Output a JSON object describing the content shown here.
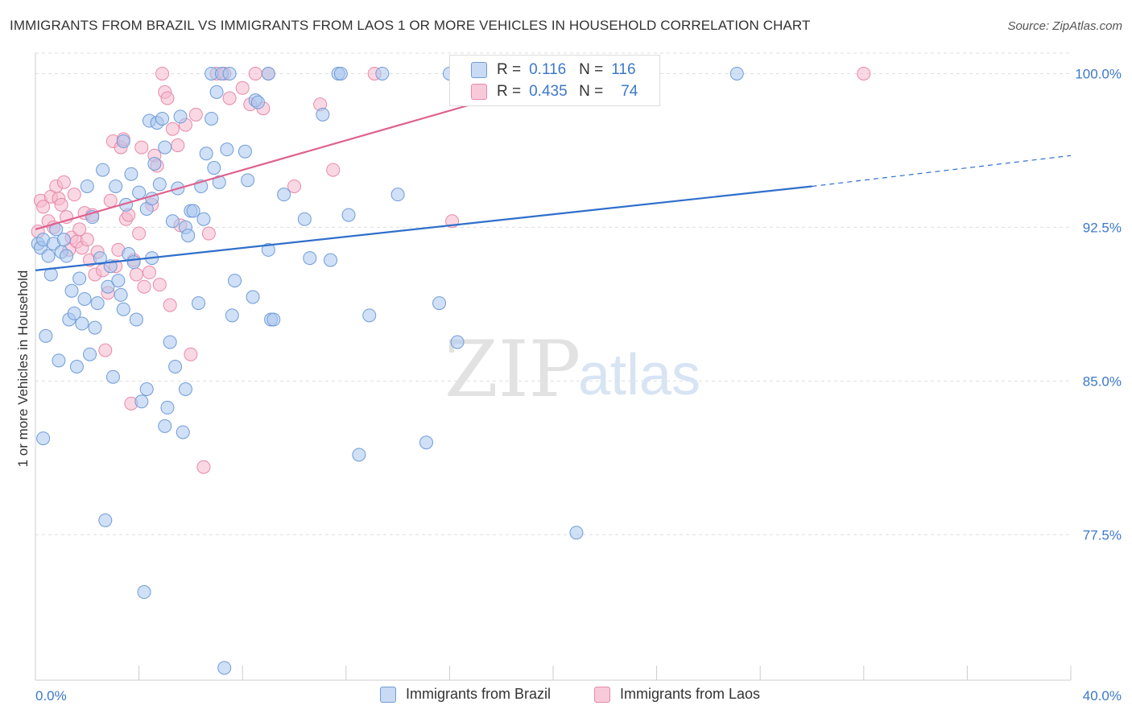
{
  "title": "IMMIGRANTS FROM BRAZIL VS IMMIGRANTS FROM LAOS 1 OR MORE VEHICLES IN HOUSEHOLD CORRELATION CHART",
  "source": "Source: ZipAtlas.com",
  "watermark": {
    "zip": "ZIP",
    "atlas": "atlas"
  },
  "legend": {
    "r_label": "R =",
    "n_label": "N =",
    "brazil": {
      "r": "0.116",
      "n": "116"
    },
    "laos": {
      "r": "0.435",
      "n": "74"
    }
  },
  "colors": {
    "brazil_fill": "#a9c6ee",
    "brazil_stroke": "#6f9cd8",
    "brazil_line": "#2f6fcb",
    "laos_fill": "#f5b8cc",
    "laos_stroke": "#e88aa8",
    "laos_line": "#e0628f",
    "tick_label": "#3d78c9",
    "grid": "#dedede"
  },
  "chart_data": {
    "type": "scatter",
    "title": "IMMIGRANTS FROM BRAZIL VS IMMIGRANTS FROM LAOS 1 OR MORE VEHICLES IN HOUSEHOLD CORRELATION CHART",
    "xlabel": "",
    "ylabel": "1 or more Vehicles in Household",
    "xlim": [
      0,
      40
    ],
    "ylim": [
      70.4,
      101.0
    ],
    "x_tick_labels": [
      "0.0%",
      "40.0%"
    ],
    "y_ticks": [
      77.5,
      85.0,
      92.5,
      100.0
    ],
    "y_tick_labels": [
      "77.5%",
      "85.0%",
      "92.5%",
      "100.0%"
    ],
    "grid": "horizontal dashed",
    "legend_position": "top-center",
    "series": [
      {
        "name": "Immigrants from Brazil",
        "r": 0.116,
        "n": 116,
        "trend": {
          "x0": 0,
          "y0": 90.4,
          "x1": 30,
          "y1": 94.5,
          "dashed_to_x": 40,
          "dashed_to_y": 96.0
        },
        "points": [
          [
            0.1,
            91.7
          ],
          [
            0.2,
            91.5
          ],
          [
            0.3,
            91.9
          ],
          [
            0.3,
            82.2
          ],
          [
            0.4,
            87.2
          ],
          [
            0.5,
            91.1
          ],
          [
            0.6,
            90.2
          ],
          [
            0.7,
            91.7
          ],
          [
            0.8,
            92.4
          ],
          [
            0.9,
            86.0
          ],
          [
            1.0,
            91.3
          ],
          [
            1.1,
            91.9
          ],
          [
            1.2,
            91.1
          ],
          [
            1.3,
            88.0
          ],
          [
            1.4,
            89.4
          ],
          [
            1.5,
            88.3
          ],
          [
            1.6,
            85.7
          ],
          [
            1.7,
            90.0
          ],
          [
            1.8,
            87.8
          ],
          [
            1.9,
            89.0
          ],
          [
            2.0,
            94.5
          ],
          [
            2.1,
            86.3
          ],
          [
            2.2,
            93.0
          ],
          [
            2.3,
            87.6
          ],
          [
            2.4,
            88.8
          ],
          [
            2.5,
            91.0
          ],
          [
            2.6,
            95.3
          ],
          [
            2.7,
            78.2
          ],
          [
            2.8,
            89.6
          ],
          [
            2.9,
            90.6
          ],
          [
            3.0,
            85.2
          ],
          [
            3.1,
            94.5
          ],
          [
            3.2,
            89.9
          ],
          [
            3.3,
            89.2
          ],
          [
            3.4,
            88.5
          ],
          [
            3.4,
            96.7
          ],
          [
            3.5,
            93.6
          ],
          [
            3.6,
            91.2
          ],
          [
            3.7,
            95.1
          ],
          [
            3.8,
            90.8
          ],
          [
            3.9,
            88.0
          ],
          [
            4.0,
            94.2
          ],
          [
            4.1,
            84.0
          ],
          [
            4.2,
            74.7
          ],
          [
            4.3,
            84.6
          ],
          [
            4.3,
            93.4
          ],
          [
            4.4,
            97.7
          ],
          [
            4.5,
            91.0
          ],
          [
            4.5,
            93.9
          ],
          [
            4.6,
            95.6
          ],
          [
            4.7,
            97.6
          ],
          [
            4.8,
            94.6
          ],
          [
            4.9,
            97.8
          ],
          [
            5.0,
            96.4
          ],
          [
            5.0,
            82.8
          ],
          [
            5.1,
            83.7
          ],
          [
            5.2,
            86.9
          ],
          [
            5.3,
            92.8
          ],
          [
            5.4,
            85.7
          ],
          [
            5.5,
            94.4
          ],
          [
            5.6,
            97.9
          ],
          [
            5.7,
            82.5
          ],
          [
            5.8,
            84.6
          ],
          [
            5.8,
            92.5
          ],
          [
            5.9,
            92.1
          ],
          [
            6.0,
            93.3
          ],
          [
            6.1,
            93.3
          ],
          [
            6.3,
            88.8
          ],
          [
            6.4,
            94.5
          ],
          [
            6.5,
            92.9
          ],
          [
            6.6,
            96.1
          ],
          [
            6.8,
            97.8
          ],
          [
            6.8,
            100.0
          ],
          [
            6.9,
            95.4
          ],
          [
            7.0,
            99.1
          ],
          [
            7.1,
            94.7
          ],
          [
            7.2,
            100.0
          ],
          [
            7.3,
            71.0
          ],
          [
            7.4,
            96.3
          ],
          [
            7.5,
            100.0
          ],
          [
            7.6,
            88.2
          ],
          [
            7.7,
            89.9
          ],
          [
            8.1,
            96.2
          ],
          [
            8.2,
            94.8
          ],
          [
            8.4,
            89.1
          ],
          [
            8.5,
            98.7
          ],
          [
            8.6,
            98.6
          ],
          [
            9.0,
            91.4
          ],
          [
            9.0,
            100.0
          ],
          [
            9.1,
            88.0
          ],
          [
            9.2,
            88.0
          ],
          [
            9.6,
            94.1
          ],
          [
            10.4,
            92.9
          ],
          [
            10.6,
            91.0
          ],
          [
            11.1,
            98.0
          ],
          [
            11.4,
            90.9
          ],
          [
            11.7,
            100.0
          ],
          [
            11.8,
            100.0
          ],
          [
            12.1,
            93.1
          ],
          [
            12.5,
            81.4
          ],
          [
            12.9,
            88.2
          ],
          [
            13.4,
            100.0
          ],
          [
            14.0,
            94.1
          ],
          [
            15.1,
            82.0
          ],
          [
            15.6,
            88.8
          ],
          [
            16.0,
            100.0
          ],
          [
            16.3,
            86.9
          ],
          [
            20.9,
            77.6
          ],
          [
            27.1,
            100.0
          ]
        ]
      },
      {
        "name": "Immigrants from Laos",
        "r": 0.435,
        "n": 74,
        "trend": {
          "x0": 0,
          "y0": 92.4,
          "x1": 21,
          "y1": 100.0
        },
        "points": [
          [
            0.1,
            92.3
          ],
          [
            0.2,
            93.8
          ],
          [
            0.3,
            93.5
          ],
          [
            0.5,
            92.8
          ],
          [
            0.6,
            94.0
          ],
          [
            0.7,
            92.5
          ],
          [
            0.8,
            94.5
          ],
          [
            0.9,
            93.9
          ],
          [
            1.0,
            93.6
          ],
          [
            1.1,
            94.7
          ],
          [
            1.2,
            93.0
          ],
          [
            1.3,
            91.4
          ],
          [
            1.4,
            92.0
          ],
          [
            1.5,
            94.1
          ],
          [
            1.6,
            91.8
          ],
          [
            1.7,
            92.4
          ],
          [
            1.8,
            91.5
          ],
          [
            1.9,
            93.2
          ],
          [
            2.0,
            91.9
          ],
          [
            2.1,
            90.9
          ],
          [
            2.2,
            93.1
          ],
          [
            2.3,
            90.2
          ],
          [
            2.4,
            91.3
          ],
          [
            2.6,
            90.4
          ],
          [
            2.7,
            86.5
          ],
          [
            2.8,
            89.3
          ],
          [
            2.9,
            93.8
          ],
          [
            3.0,
            96.7
          ],
          [
            3.1,
            90.6
          ],
          [
            3.2,
            91.4
          ],
          [
            3.3,
            96.4
          ],
          [
            3.4,
            96.8
          ],
          [
            3.5,
            92.9
          ],
          [
            3.6,
            93.1
          ],
          [
            3.7,
            83.9
          ],
          [
            3.8,
            90.9
          ],
          [
            3.9,
            90.2
          ],
          [
            4.0,
            92.2
          ],
          [
            4.1,
            96.4
          ],
          [
            4.2,
            89.6
          ],
          [
            4.4,
            90.3
          ],
          [
            4.5,
            93.6
          ],
          [
            4.6,
            96.0
          ],
          [
            4.7,
            95.5
          ],
          [
            4.8,
            89.7
          ],
          [
            4.9,
            100.0
          ],
          [
            5.0,
            99.1
          ],
          [
            5.1,
            98.8
          ],
          [
            5.2,
            88.7
          ],
          [
            5.3,
            97.3
          ],
          [
            5.5,
            96.5
          ],
          [
            5.6,
            92.6
          ],
          [
            5.8,
            97.5
          ],
          [
            6.0,
            86.3
          ],
          [
            6.2,
            98.0
          ],
          [
            6.5,
            80.8
          ],
          [
            6.7,
            92.2
          ],
          [
            7.0,
            100.0
          ],
          [
            7.3,
            100.0
          ],
          [
            7.5,
            98.8
          ],
          [
            8.0,
            99.3
          ],
          [
            8.3,
            98.5
          ],
          [
            8.5,
            100.0
          ],
          [
            8.8,
            98.3
          ],
          [
            9.0,
            100.0
          ],
          [
            10.0,
            94.5
          ],
          [
            11.0,
            98.5
          ],
          [
            11.5,
            95.3
          ],
          [
            13.1,
            100.0
          ],
          [
            16.1,
            92.8
          ],
          [
            17.2,
            99.1
          ],
          [
            20.7,
            100.0
          ],
          [
            21.0,
            100.0
          ],
          [
            32.0,
            100.0
          ]
        ]
      }
    ]
  },
  "bottom_legend": {
    "brazil": "Immigrants from Brazil",
    "laos": "Immigrants from Laos"
  }
}
